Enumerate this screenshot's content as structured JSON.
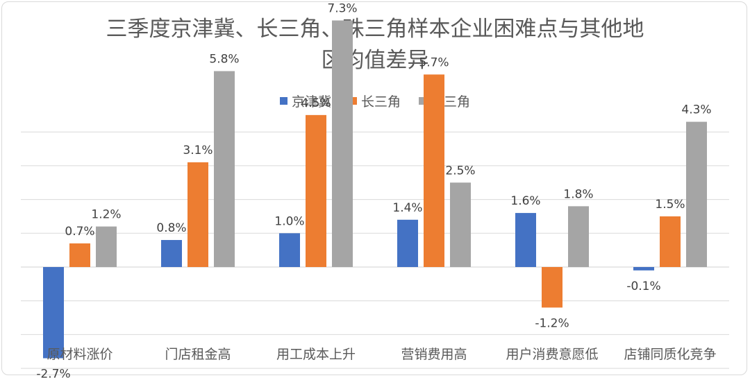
{
  "chart_data": {
    "type": "bar",
    "title_line1": "三季度京津冀、长三角、珠三角样本企业困难点与其他地",
    "title_line2": "区均值差异",
    "categories": [
      "原材料涨价",
      "门店租金高",
      "用工成本上升",
      "营销费用高",
      "用户消费意愿低",
      "店铺同质化竞争"
    ],
    "series": [
      {
        "name": "京津冀",
        "color": "#4472c4",
        "values": [
          -2.7,
          0.8,
          1.0,
          1.4,
          1.6,
          -0.1
        ]
      },
      {
        "name": "长三角",
        "color": "#ed7d31",
        "values": [
          0.7,
          3.1,
          4.5,
          5.7,
          -1.2,
          1.5
        ]
      },
      {
        "name": "珠三角",
        "color": "#a5a5a5",
        "values": [
          1.2,
          5.8,
          7.3,
          2.5,
          1.8,
          4.3
        ]
      }
    ],
    "value_suffix": "%",
    "ylim": [
      -4,
      8
    ],
    "grid": true,
    "legend_position": "top"
  }
}
